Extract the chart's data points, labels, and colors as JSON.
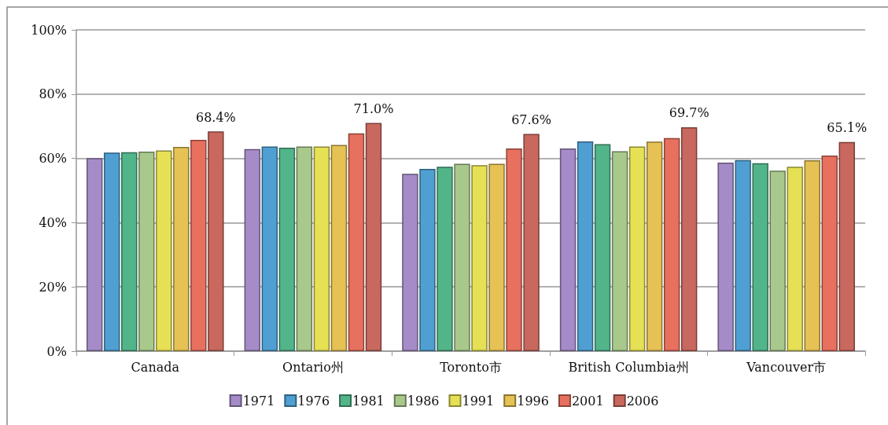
{
  "chart_data": {
    "type": "bar",
    "categories": [
      "Canada",
      "Ontario州",
      "Toronto市",
      "British Columbia州",
      "Vancouver市"
    ],
    "series": [
      {
        "name": "1971",
        "color": "#a58cc8",
        "values": [
          60.1,
          62.9,
          55.2,
          63.1,
          58.7
        ]
      },
      {
        "name": "1976",
        "color": "#4f9fd2",
        "values": [
          61.8,
          63.7,
          56.7,
          65.3,
          59.5
        ]
      },
      {
        "name": "1981",
        "color": "#52b58a",
        "values": [
          61.9,
          63.3,
          57.4,
          64.4,
          58.5
        ]
      },
      {
        "name": "1986",
        "color": "#a9c98c",
        "values": [
          62.1,
          63.7,
          58.3,
          62.2,
          56.2
        ]
      },
      {
        "name": "1991",
        "color": "#e6e055",
        "values": [
          62.5,
          63.7,
          57.9,
          63.7,
          57.4
        ]
      },
      {
        "name": "1996",
        "color": "#e6c255",
        "values": [
          63.6,
          64.2,
          58.3,
          65.2,
          59.4
        ]
      },
      {
        "name": "2001",
        "color": "#e8705e",
        "values": [
          65.8,
          67.8,
          63.1,
          66.3,
          60.9
        ]
      },
      {
        "name": "2006",
        "color": "#c8685e",
        "values": [
          68.4,
          71.0,
          67.6,
          69.7,
          65.1
        ],
        "value_labels": [
          "68.4%",
          "71.0%",
          "67.6%",
          "69.7%",
          "65.1%"
        ]
      }
    ],
    "ylim": [
      0,
      100
    ],
    "yticks": [
      {
        "value": 0,
        "label": "0%"
      },
      {
        "value": 20,
        "label": "20%"
      },
      {
        "value": 40,
        "label": "40%"
      },
      {
        "value": 60,
        "label": "60%"
      },
      {
        "value": 80,
        "label": "80%"
      },
      {
        "value": 100,
        "label": "100%"
      }
    ],
    "grid": "y",
    "legend": "bottom"
  }
}
